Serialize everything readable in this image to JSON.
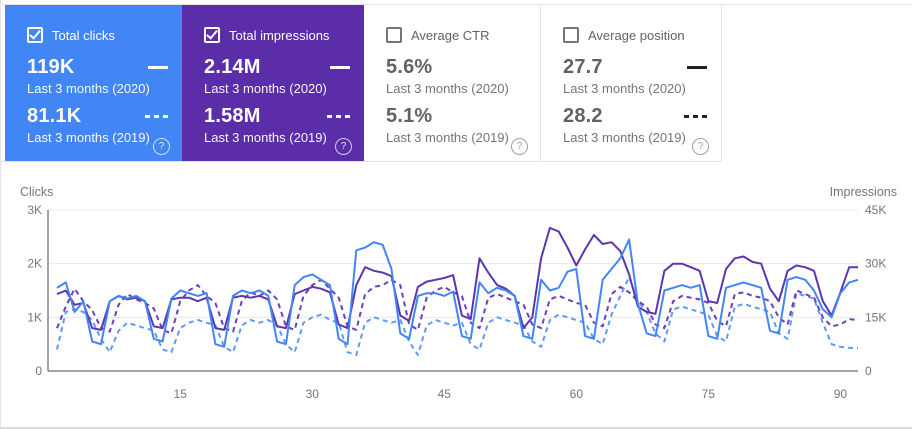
{
  "cards": [
    {
      "metric": "Total clicks",
      "checked": true,
      "bg": "#4285F4",
      "swatches": true,
      "swatch_color": "#FFFFFF",
      "current": {
        "value": "119K",
        "period": "Last 3 months (2020)"
      },
      "previous": {
        "value": "81.1K",
        "period": "Last 3 months (2019)"
      },
      "help_icon": "?"
    },
    {
      "metric": "Total impressions",
      "checked": true,
      "bg": "#5B2DA9",
      "swatches": true,
      "swatch_color": "#FFFFFF",
      "current": {
        "value": "2.14M",
        "period": "Last 3 months (2020)"
      },
      "previous": {
        "value": "1.58M",
        "period": "Last 3 months (2019)"
      },
      "help_icon": "?"
    },
    {
      "metric": "Average CTR",
      "checked": false,
      "bg": "",
      "swatches": false,
      "swatch_color": "",
      "current": {
        "value": "5.6%",
        "period": "Last 3 months (2020)"
      },
      "previous": {
        "value": "5.1%",
        "period": "Last 3 months (2019)"
      },
      "help_icon": "?"
    },
    {
      "metric": "Average position",
      "checked": false,
      "bg": "",
      "swatches": true,
      "swatch_color": "#202124",
      "current": {
        "value": "27.7",
        "period": "Last 3 months (2020)"
      },
      "previous": {
        "value": "28.2",
        "period": "Last 3 months (2019)"
      },
      "help_icon": "?"
    }
  ],
  "chart_data": {
    "type": "line",
    "days": 92,
    "x_ticks": [
      15,
      30,
      45,
      60,
      75,
      90
    ],
    "grid": true,
    "legend_position": "none",
    "left_axis": {
      "label": "Clicks",
      "range": [
        0,
        3000
      ],
      "ticks": [
        {
          "v": 0,
          "t": "0"
        },
        {
          "v": 1000,
          "t": "1K"
        },
        {
          "v": 2000,
          "t": "2K"
        },
        {
          "v": 3000,
          "t": "3K"
        }
      ]
    },
    "right_axis": {
      "label": "Impressions",
      "range": [
        0,
        45000
      ],
      "ticks": [
        {
          "v": 0,
          "t": "0"
        },
        {
          "v": 15000,
          "t": "15K"
        },
        {
          "v": 30000,
          "t": "30K"
        },
        {
          "v": 45000,
          "t": "45K"
        }
      ]
    },
    "series": [
      {
        "name": "Total clicks — Last 3 months (2020)",
        "axis": "left",
        "dash": false,
        "color": "#4285F4",
        "values": [
          1550,
          1650,
          1100,
          1300,
          550,
          500,
          1300,
          1400,
          1350,
          1400,
          1300,
          600,
          550,
          1350,
          1500,
          1450,
          1400,
          1450,
          500,
          450,
          1400,
          1500,
          1450,
          1500,
          1400,
          550,
          500,
          1600,
          1750,
          1800,
          1700,
          1600,
          600,
          500,
          2250,
          2300,
          2400,
          2350,
          1900,
          700,
          600,
          1400,
          1450,
          1450,
          1400,
          1480,
          650,
          600,
          1650,
          1450,
          1550,
          1500,
          1400,
          650,
          600,
          1700,
          1500,
          1550,
          1850,
          1900,
          650,
          600,
          1700,
          1900,
          2100,
          2450,
          1250,
          700,
          650,
          1500,
          1550,
          1600,
          1550,
          1600,
          650,
          600,
          1550,
          1600,
          1650,
          1600,
          1550,
          750,
          700,
          1700,
          1750,
          1700,
          1500,
          1150,
          1000,
          1450,
          1650,
          1700
        ]
      },
      {
        "name": "Total clicks — Last 3 months (2019)",
        "axis": "left",
        "dash": true,
        "color": "#6199F8",
        "values": [
          400,
          1100,
          1150,
          1100,
          950,
          600,
          350,
          750,
          900,
          850,
          800,
          750,
          400,
          350,
          800,
          900,
          950,
          900,
          850,
          450,
          350,
          850,
          950,
          900,
          950,
          850,
          500,
          350,
          900,
          1000,
          1050,
          950,
          900,
          350,
          300,
          900,
          1000,
          950,
          900,
          950,
          550,
          300,
          850,
          950,
          900,
          850,
          900,
          500,
          400,
          900,
          1000,
          950,
          900,
          850,
          550,
          450,
          950,
          1050,
          1000,
          950,
          900,
          600,
          500,
          1050,
          1400,
          1750,
          1300,
          1100,
          700,
          550,
          1150,
          1200,
          1150,
          1100,
          1050,
          650,
          550,
          1200,
          1250,
          1200,
          1150,
          1100,
          700,
          600,
          1450,
          1400,
          1350,
          900,
          500,
          450,
          430,
          430
        ]
      },
      {
        "name": "Total impressions — Last 3 months (2020)",
        "axis": "right",
        "dash": false,
        "color": "#5E35B1",
        "values": [
          21500,
          22500,
          18500,
          19000,
          12000,
          11500,
          19500,
          21000,
          20000,
          20500,
          19500,
          12500,
          12000,
          20000,
          20500,
          20500,
          19500,
          20500,
          12000,
          11500,
          20500,
          21000,
          20500,
          21000,
          20000,
          12500,
          12000,
          21500,
          22500,
          23500,
          23000,
          22000,
          13000,
          12000,
          24000,
          29000,
          28000,
          27500,
          26500,
          15500,
          14000,
          23500,
          25000,
          25500,
          26000,
          26800,
          15500,
          14500,
          31500,
          27500,
          24000,
          23000,
          21000,
          12000,
          15000,
          31500,
          40000,
          39000,
          34500,
          29500,
          34000,
          38000,
          35500,
          36000,
          33500,
          27000,
          18000,
          16500,
          16000,
          28000,
          30000,
          30000,
          29000,
          28000,
          19500,
          19000,
          28500,
          31500,
          32000,
          30500,
          30000,
          23000,
          19500,
          28000,
          29500,
          29000,
          28000,
          19500,
          15500,
          22000,
          29000,
          29000
        ]
      },
      {
        "name": "Total impressions — Last 3 months (2019)",
        "axis": "right",
        "dash": true,
        "color": "#6B3FC0",
        "values": [
          12000,
          18000,
          23000,
          19500,
          17000,
          12000,
          11000,
          18500,
          21500,
          20000,
          19000,
          17500,
          11500,
          10500,
          19500,
          22500,
          24000,
          21000,
          19000,
          12000,
          11000,
          19500,
          22000,
          21000,
          22500,
          20000,
          12500,
          11500,
          21000,
          24000,
          25500,
          23000,
          20500,
          12500,
          11500,
          21500,
          23500,
          24000,
          25500,
          24000,
          13000,
          11500,
          20500,
          22500,
          23500,
          22000,
          21000,
          13500,
          12000,
          20500,
          21500,
          20500,
          19500,
          18500,
          13000,
          12000,
          20000,
          21000,
          20000,
          19000,
          18500,
          13500,
          12500,
          21500,
          23500,
          22000,
          19500,
          18000,
          13000,
          12000,
          19500,
          21000,
          20500,
          20000,
          19000,
          14000,
          12500,
          21500,
          22000,
          21000,
          20500,
          19500,
          15000,
          13000,
          22500,
          21500,
          20500,
          15000,
          12500,
          13000,
          14500,
          14200
        ]
      }
    ]
  }
}
